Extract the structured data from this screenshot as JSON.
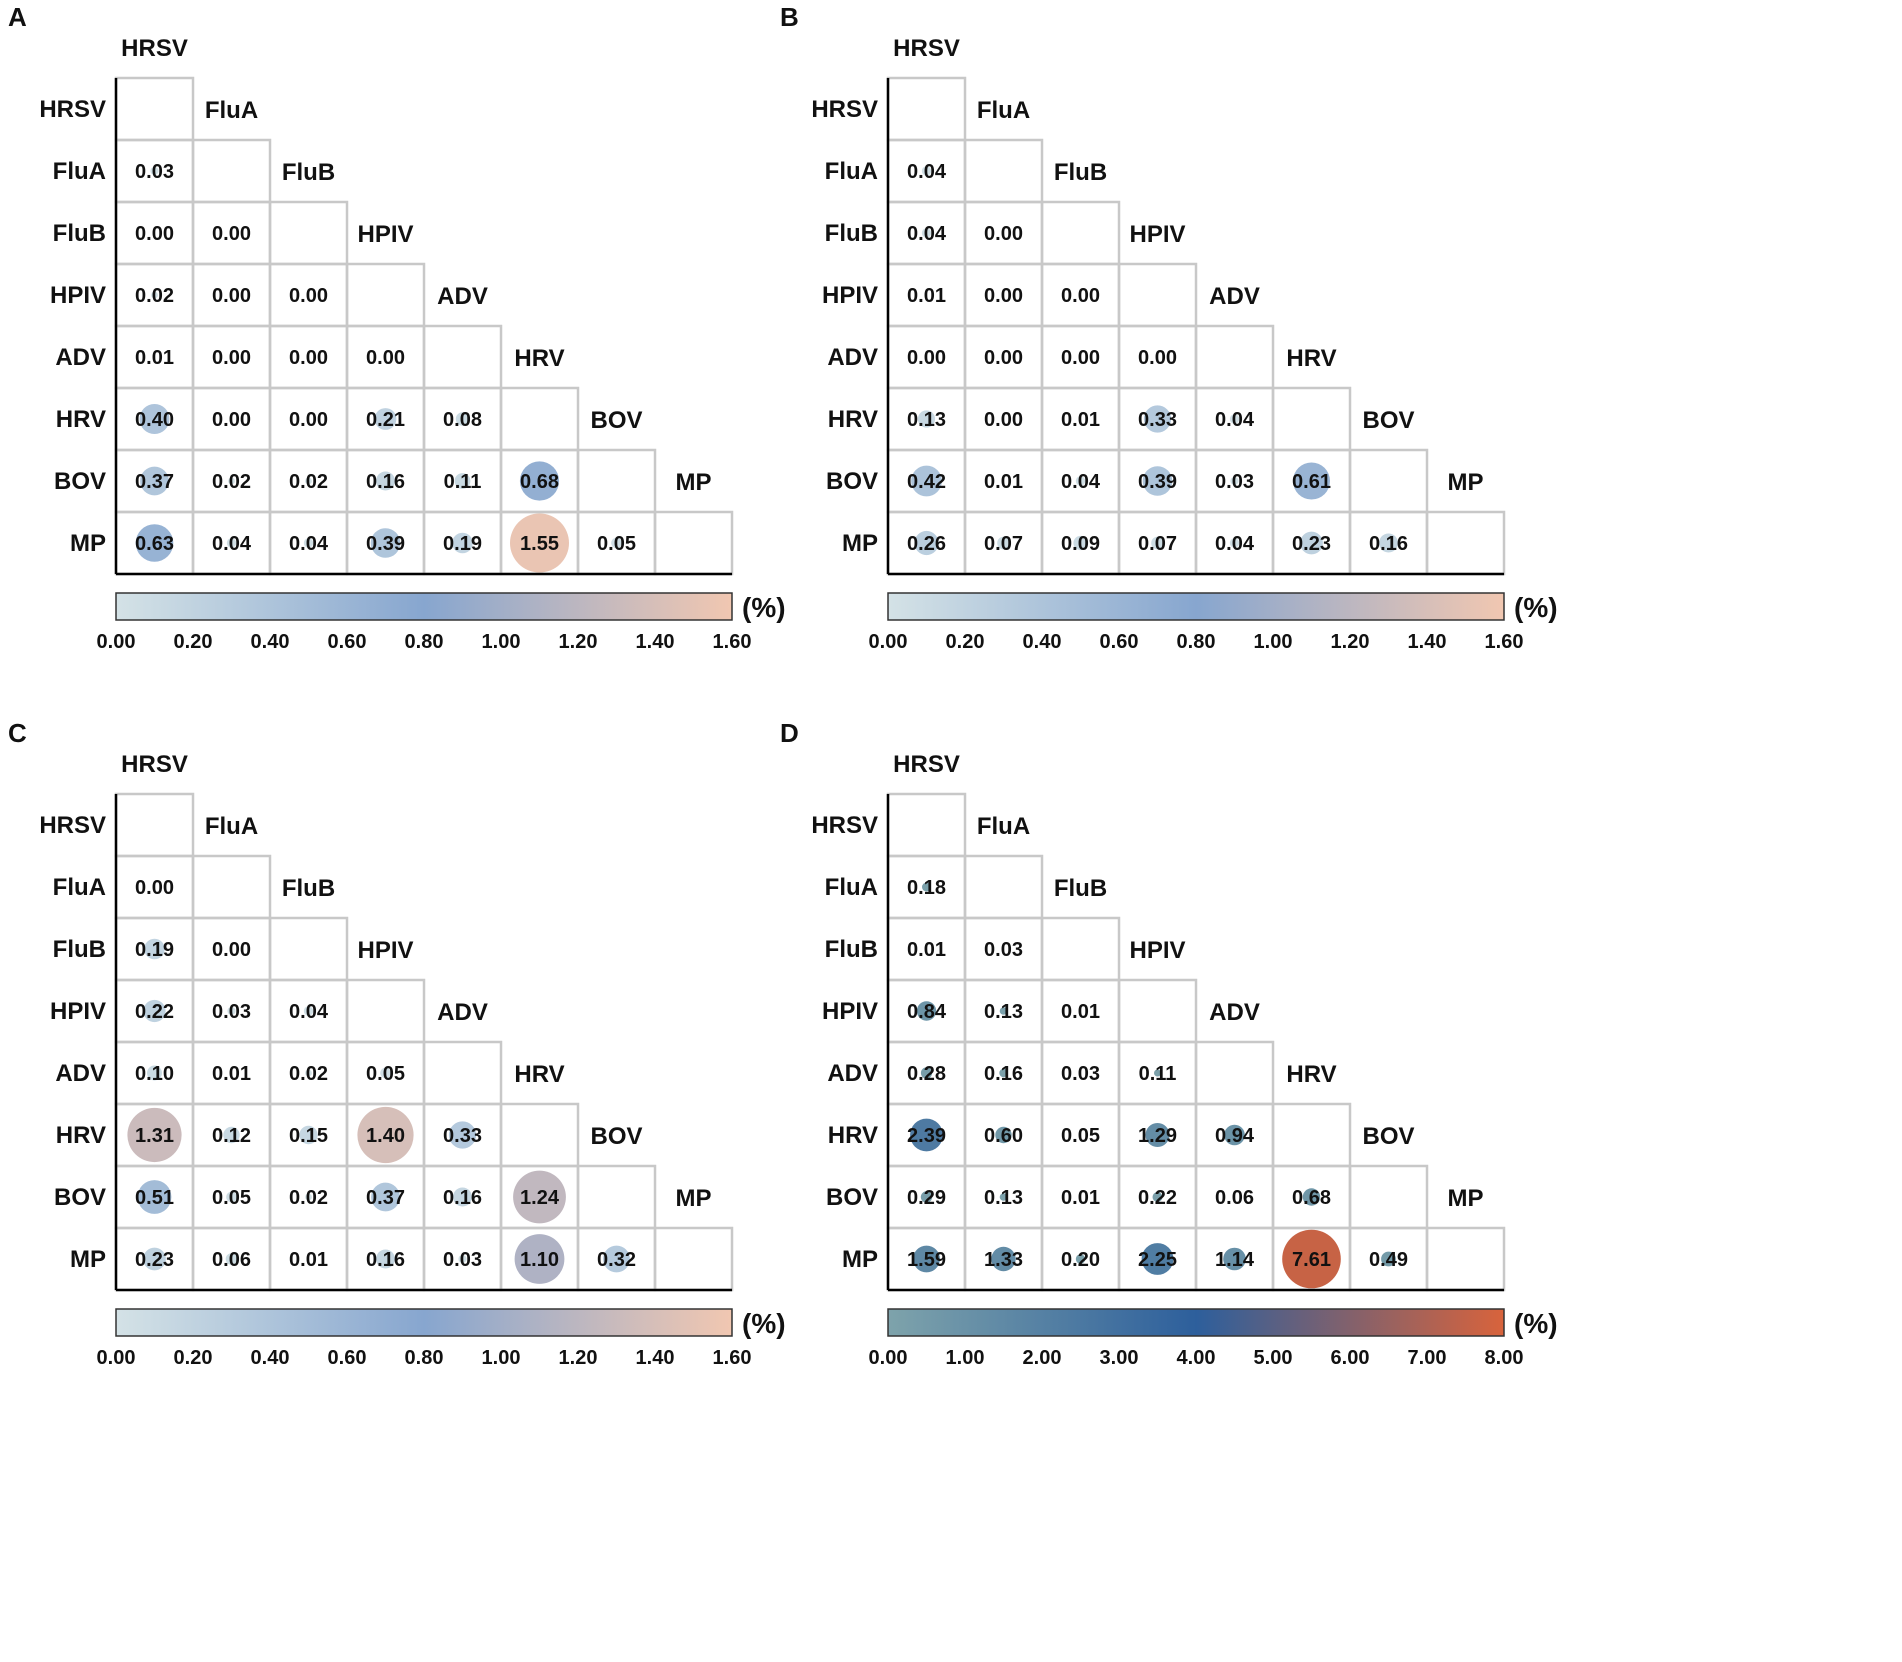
{
  "chart_data": [
    {
      "panel": "A",
      "type": "heatmap",
      "subtype": "lower-triangle correlation bubble matrix",
      "labels": [
        "HRSV",
        "FluA",
        "FluB",
        "HPIV",
        "ADV",
        "HRV",
        "BOV",
        "MP"
      ],
      "rows": [
        [],
        [
          "0.03"
        ],
        [
          "0.00",
          "0.00"
        ],
        [
          "0.02",
          "0.00",
          "0.00"
        ],
        [
          "0.01",
          "0.00",
          "0.00",
          "0.00"
        ],
        [
          "0.40",
          "0.00",
          "0.00",
          "0.21",
          "0.08"
        ],
        [
          "0.37",
          "0.02",
          "0.02",
          "0.16",
          "0.11",
          "0.68"
        ],
        [
          "0.63",
          "0.04",
          "0.04",
          "0.39",
          "0.19",
          "1.55",
          "0.05"
        ]
      ],
      "colorbar": {
        "min": 0,
        "max": 1.6,
        "ticks": [
          "0.00",
          "0.20",
          "0.40",
          "0.60",
          "0.80",
          "1.00",
          "1.20",
          "1.40",
          "1.60"
        ],
        "unit": "(%)",
        "colors": [
          "#d4e2e6",
          "#87a6cf",
          "#f1c7b1"
        ]
      }
    },
    {
      "panel": "B",
      "type": "heatmap",
      "subtype": "lower-triangle correlation bubble matrix",
      "labels": [
        "HRSV",
        "FluA",
        "FluB",
        "HPIV",
        "ADV",
        "HRV",
        "BOV",
        "MP"
      ],
      "rows": [
        [],
        [
          "0.04"
        ],
        [
          "0.04",
          "0.00"
        ],
        [
          "0.01",
          "0.00",
          "0.00"
        ],
        [
          "0.00",
          "0.00",
          "0.00",
          "0.00"
        ],
        [
          "0.13",
          "0.00",
          "0.01",
          "0.33",
          "0.04"
        ],
        [
          "0.42",
          "0.01",
          "0.04",
          "0.39",
          "0.03",
          "0.61"
        ],
        [
          "0.26",
          "0.07",
          "0.09",
          "0.07",
          "0.04",
          "0.23",
          "0.16"
        ]
      ],
      "colorbar": {
        "min": 0,
        "max": 1.6,
        "ticks": [
          "0.00",
          "0.20",
          "0.40",
          "0.60",
          "0.80",
          "1.00",
          "1.20",
          "1.40",
          "1.60"
        ],
        "unit": "(%)",
        "colors": [
          "#d4e2e6",
          "#87a6cf",
          "#f1c7b1"
        ]
      }
    },
    {
      "panel": "C",
      "type": "heatmap",
      "subtype": "lower-triangle correlation bubble matrix",
      "labels": [
        "HRSV",
        "FluA",
        "FluB",
        "HPIV",
        "ADV",
        "HRV",
        "BOV",
        "MP"
      ],
      "rows": [
        [],
        [
          "0.00"
        ],
        [
          "0.19",
          "0.00"
        ],
        [
          "0.22",
          "0.03",
          "0.04"
        ],
        [
          "0.10",
          "0.01",
          "0.02",
          "0.05"
        ],
        [
          "1.31",
          "0.12",
          "0.15",
          "1.40",
          "0.33"
        ],
        [
          "0.51",
          "0.05",
          "0.02",
          "0.37",
          "0.16",
          "1.24"
        ],
        [
          "0.23",
          "0.06",
          "0.01",
          "0.16",
          "0.03",
          "1.10",
          "0.32"
        ]
      ],
      "colorbar": {
        "min": 0,
        "max": 1.6,
        "ticks": [
          "0.00",
          "0.20",
          "0.40",
          "0.60",
          "0.80",
          "1.00",
          "1.20",
          "1.40",
          "1.60"
        ],
        "unit": "(%)",
        "colors": [
          "#d4e2e6",
          "#87a6cf",
          "#f1c7b1"
        ]
      }
    },
    {
      "panel": "D",
      "type": "heatmap",
      "subtype": "lower-triangle correlation bubble matrix",
      "labels": [
        "HRSV",
        "FluA",
        "FluB",
        "HPIV",
        "ADV",
        "HRV",
        "BOV",
        "MP"
      ],
      "rows": [
        [],
        [
          "0.18"
        ],
        [
          "0.01",
          "0.03"
        ],
        [
          "0.84",
          "0.13",
          "0.01"
        ],
        [
          "0.28",
          "0.16",
          "0.03",
          "0.11"
        ],
        [
          "2.39",
          "0.60",
          "0.05",
          "1.29",
          "0.94"
        ],
        [
          "0.29",
          "0.13",
          "0.01",
          "0.22",
          "0.06",
          "0.68"
        ],
        [
          "1.59",
          "1.33",
          "0.20",
          "2.25",
          "1.14",
          "7.61",
          "0.49"
        ]
      ],
      "colorbar": {
        "min": 0,
        "max": 8.0,
        "ticks": [
          "0.00",
          "1.00",
          "2.00",
          "3.00",
          "4.00",
          "5.00",
          "6.00",
          "7.00",
          "8.00"
        ],
        "unit": "(%)",
        "colors": [
          "#7ea3ab",
          "#2d5f9c",
          "#d8633c"
        ]
      }
    }
  ]
}
